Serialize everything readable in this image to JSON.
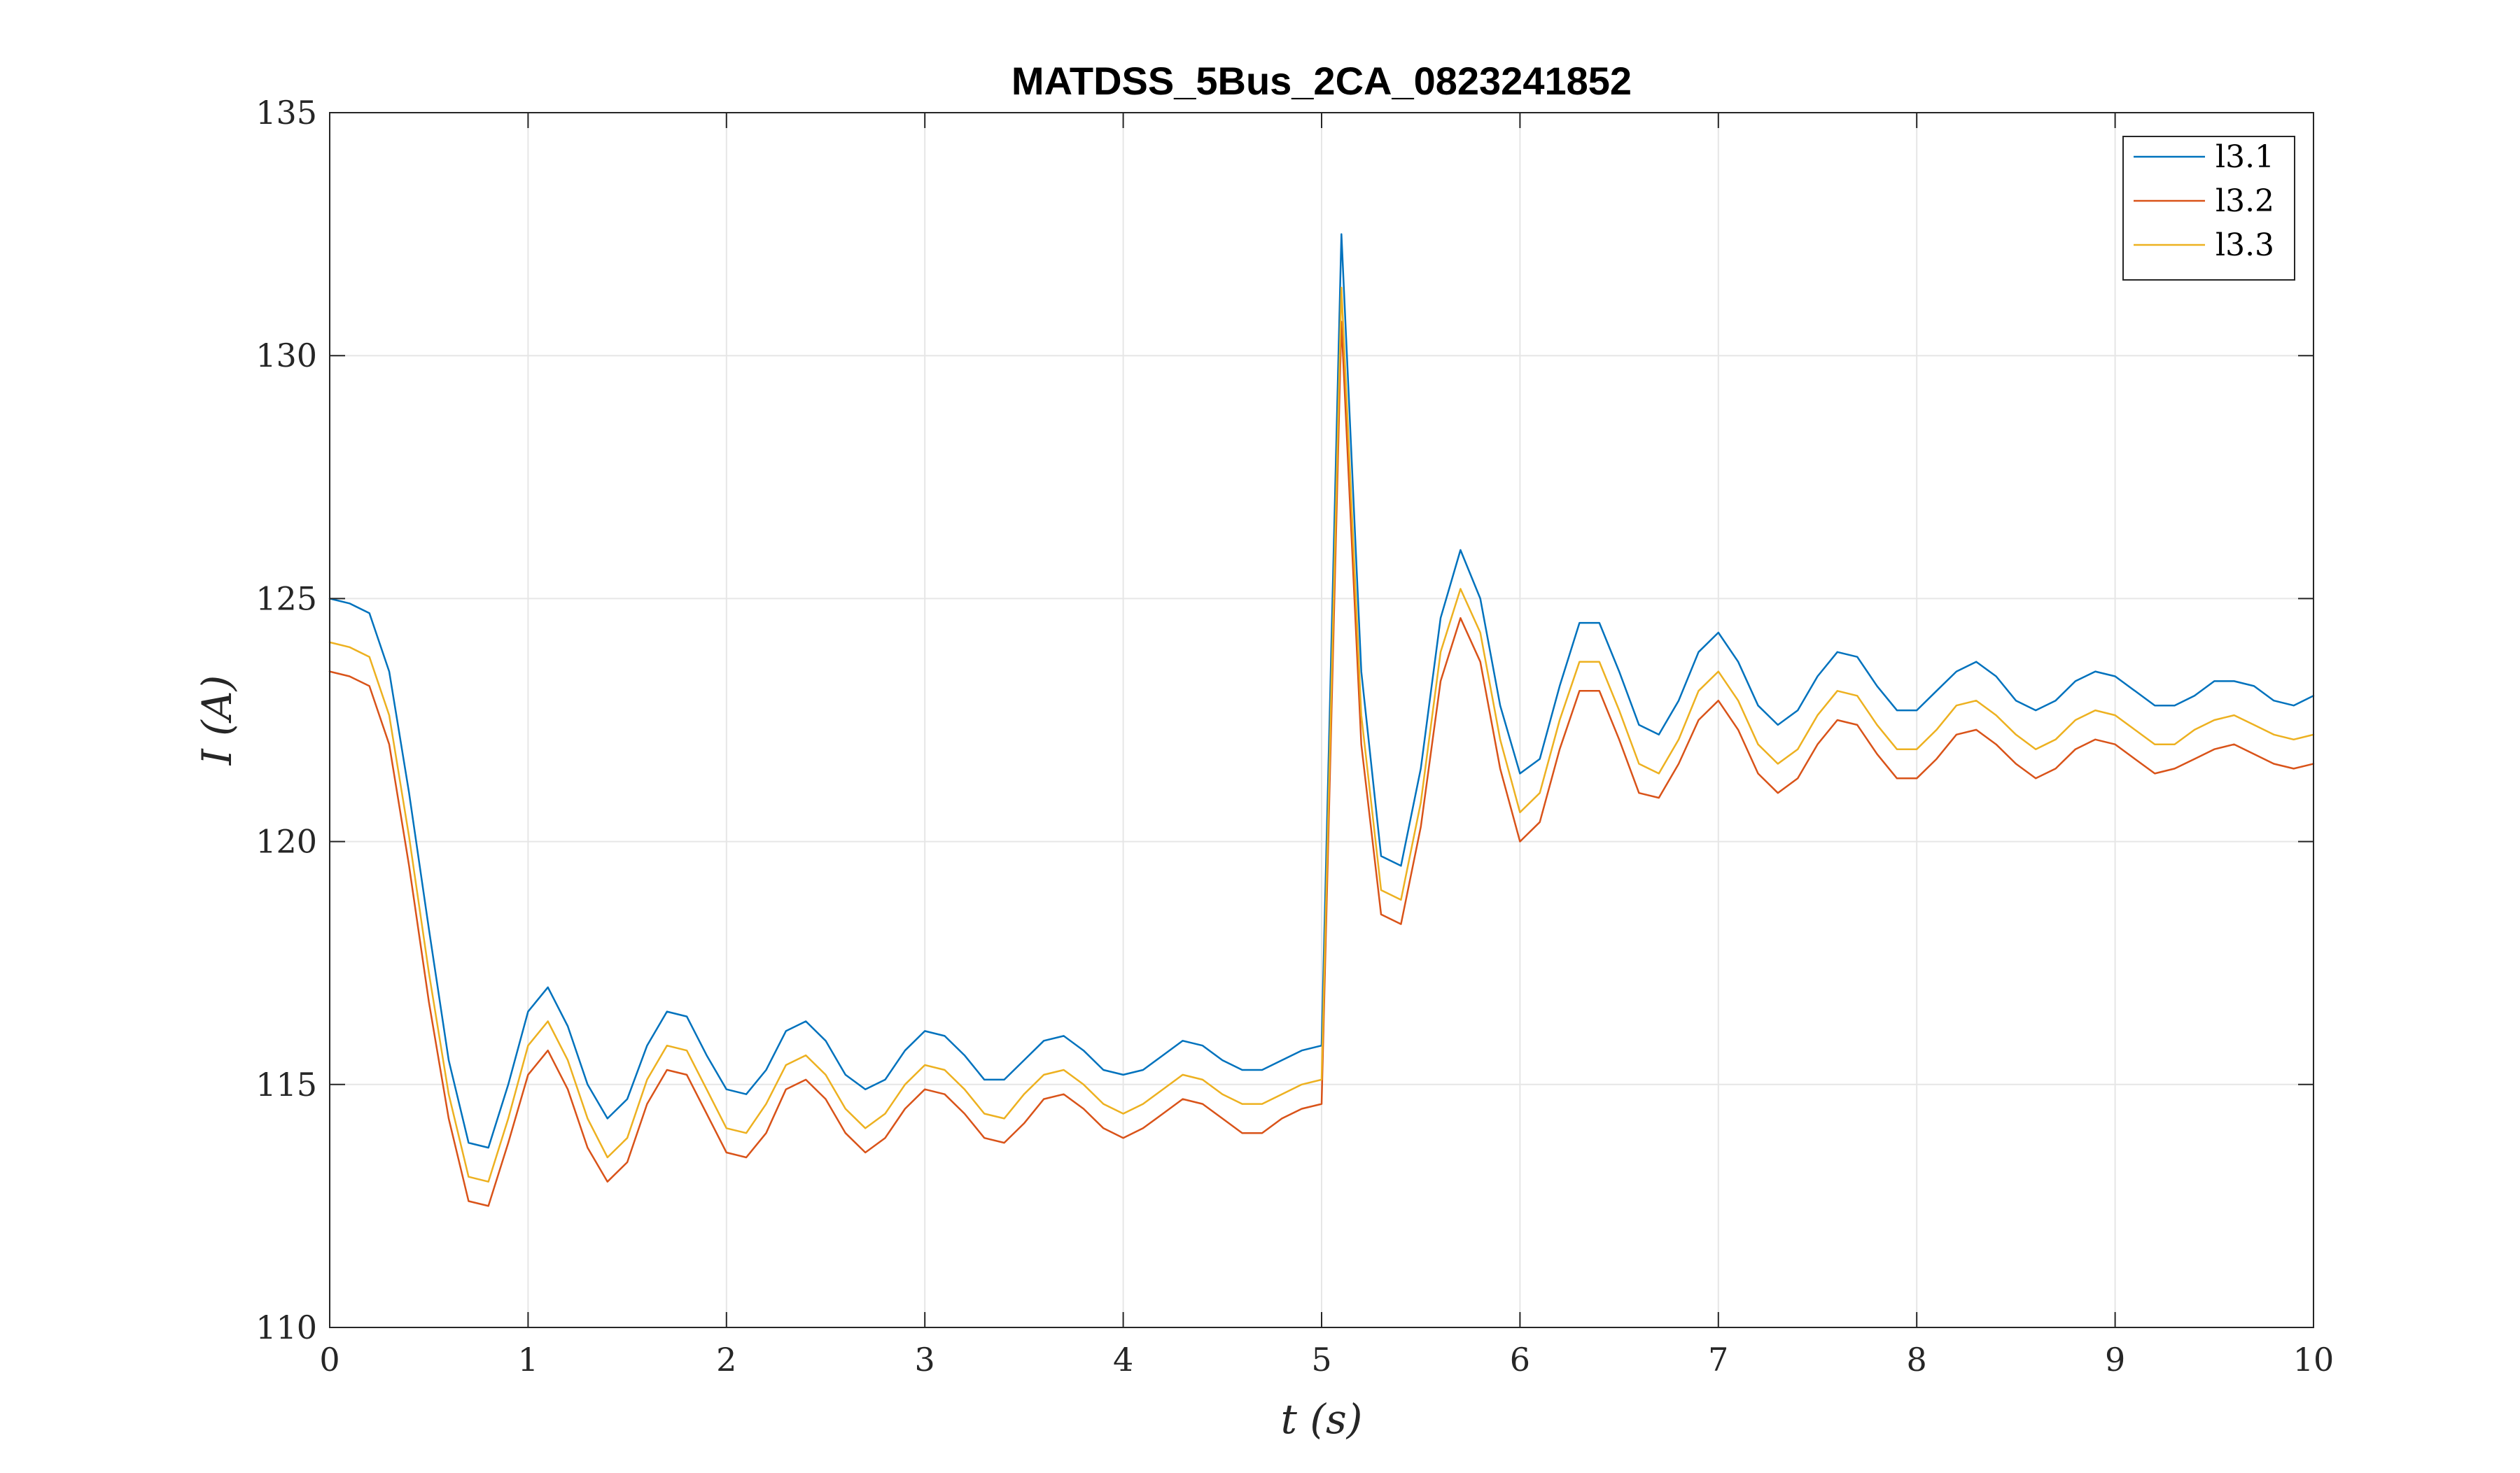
{
  "chart_data": {
    "type": "line",
    "title": "MATDSS_5Bus_2CA_0823241852",
    "xlabel": "t (s)",
    "ylabel": "I (A)",
    "xlim": [
      0,
      10
    ],
    "ylim": [
      110,
      135
    ],
    "xticks": [
      0,
      1,
      2,
      3,
      4,
      5,
      6,
      7,
      8,
      9,
      10
    ],
    "yticks": [
      110,
      115,
      120,
      125,
      130,
      135
    ],
    "grid": true,
    "legend_position": "top-right",
    "x": [
      0,
      0.1,
      0.2,
      0.3,
      0.4,
      0.5,
      0.6,
      0.7,
      0.8,
      0.9,
      1.0,
      1.1,
      1.2,
      1.3,
      1.4,
      1.5,
      1.6,
      1.7,
      1.8,
      1.9,
      2.0,
      2.1,
      2.2,
      2.3,
      2.4,
      2.5,
      2.6,
      2.7,
      2.8,
      2.9,
      3.0,
      3.1,
      3.2,
      3.3,
      3.4,
      3.5,
      3.6,
      3.7,
      3.8,
      3.9,
      4.0,
      4.1,
      4.2,
      4.3,
      4.4,
      4.5,
      4.6,
      4.7,
      4.8,
      4.9,
      5.0,
      5.1,
      5.2,
      5.3,
      5.4,
      5.5,
      5.6,
      5.7,
      5.8,
      5.9,
      6.0,
      6.1,
      6.2,
      6.3,
      6.4,
      6.5,
      6.6,
      6.7,
      6.8,
      6.9,
      7.0,
      7.1,
      7.2,
      7.3,
      7.4,
      7.5,
      7.6,
      7.7,
      7.8,
      7.9,
      8.0,
      8.1,
      8.2,
      8.3,
      8.4,
      8.5,
      8.6,
      8.7,
      8.8,
      8.9,
      9.0,
      9.1,
      9.2,
      9.3,
      9.4,
      9.5,
      9.6,
      9.7,
      9.8,
      9.9,
      10.0
    ],
    "series": [
      {
        "name": "l3.1",
        "color": "#0072BD",
        "values": [
          125.0,
          124.9,
          124.7,
          123.5,
          121.0,
          118.2,
          115.5,
          113.8,
          113.7,
          115.0,
          116.5,
          117.0,
          116.2,
          115.0,
          114.3,
          114.7,
          115.8,
          116.5,
          116.4,
          115.6,
          114.9,
          114.8,
          115.3,
          116.1,
          116.3,
          115.9,
          115.2,
          114.9,
          115.1,
          115.7,
          116.1,
          116.0,
          115.6,
          115.1,
          115.1,
          115.5,
          115.9,
          116.0,
          115.7,
          115.3,
          115.2,
          115.3,
          115.6,
          115.9,
          115.8,
          115.5,
          115.3,
          115.3,
          115.5,
          115.7,
          115.8,
          132.5,
          123.5,
          119.7,
          119.5,
          121.5,
          124.6,
          126.0,
          125.0,
          122.8,
          121.4,
          121.7,
          123.2,
          124.5,
          124.5,
          123.5,
          122.4,
          122.2,
          122.9,
          123.9,
          124.3,
          123.7,
          122.8,
          122.4,
          122.7,
          123.4,
          123.9,
          123.8,
          123.2,
          122.7,
          122.7,
          123.1,
          123.5,
          123.7,
          123.4,
          122.9,
          122.7,
          122.9,
          123.3,
          123.5,
          123.4,
          123.1,
          122.8,
          122.8,
          123.0,
          123.3,
          123.3,
          123.2,
          122.9,
          122.8,
          123.0
        ]
      },
      {
        "name": "l3.2",
        "color": "#D95319",
        "values": [
          123.5,
          123.4,
          123.2,
          122.0,
          119.5,
          116.7,
          114.3,
          112.6,
          112.5,
          113.8,
          115.2,
          115.7,
          114.9,
          113.7,
          113.0,
          113.4,
          114.6,
          115.3,
          115.2,
          114.4,
          113.6,
          113.5,
          114.0,
          114.9,
          115.1,
          114.7,
          114.0,
          113.6,
          113.9,
          114.5,
          114.9,
          114.8,
          114.4,
          113.9,
          113.8,
          114.2,
          114.7,
          114.8,
          114.5,
          114.1,
          113.9,
          114.1,
          114.4,
          114.7,
          114.6,
          114.3,
          114.0,
          114.0,
          114.3,
          114.5,
          114.6,
          130.7,
          122.0,
          118.5,
          118.3,
          120.3,
          123.3,
          124.6,
          123.7,
          121.5,
          120.0,
          120.4,
          121.9,
          123.1,
          123.1,
          122.1,
          121.0,
          120.9,
          121.6,
          122.5,
          122.9,
          122.3,
          121.4,
          121.0,
          121.3,
          122.0,
          122.5,
          122.4,
          121.8,
          121.3,
          121.3,
          121.7,
          122.2,
          122.3,
          122.0,
          121.6,
          121.3,
          121.5,
          121.9,
          122.1,
          122.0,
          121.7,
          121.4,
          121.5,
          121.7,
          121.9,
          122.0,
          121.8,
          121.6,
          121.5,
          121.6
        ]
      },
      {
        "name": "l3.3",
        "color": "#EDB120",
        "values": [
          124.1,
          124.0,
          123.8,
          122.6,
          120.1,
          117.3,
          114.8,
          113.1,
          113.0,
          114.3,
          115.8,
          116.3,
          115.5,
          114.3,
          113.5,
          113.9,
          115.1,
          115.8,
          115.7,
          114.9,
          114.1,
          114.0,
          114.6,
          115.4,
          115.6,
          115.2,
          114.5,
          114.1,
          114.4,
          115.0,
          115.4,
          115.3,
          114.9,
          114.4,
          114.3,
          114.8,
          115.2,
          115.3,
          115.0,
          114.6,
          114.4,
          114.6,
          114.9,
          115.2,
          115.1,
          114.8,
          114.6,
          114.6,
          114.8,
          115.0,
          115.1,
          131.4,
          122.6,
          119.0,
          118.8,
          120.8,
          123.9,
          125.2,
          124.3,
          122.1,
          120.6,
          121.0,
          122.5,
          123.7,
          123.7,
          122.7,
          121.6,
          121.4,
          122.1,
          123.1,
          123.5,
          122.9,
          122.0,
          121.6,
          121.9,
          122.6,
          123.1,
          123.0,
          122.4,
          121.9,
          121.9,
          122.3,
          122.8,
          122.9,
          122.6,
          122.2,
          121.9,
          122.1,
          122.5,
          122.7,
          122.6,
          122.3,
          122.0,
          122.0,
          122.3,
          122.5,
          122.6,
          122.4,
          122.2,
          122.1,
          122.2
        ]
      }
    ]
  }
}
